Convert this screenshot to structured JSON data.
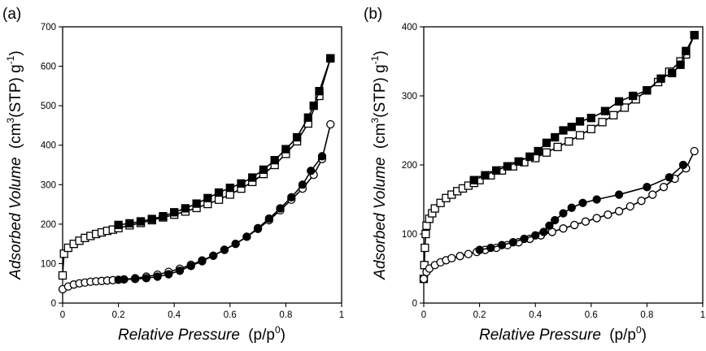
{
  "chart_data": [
    {
      "type": "scatter",
      "panel_label": "(a)",
      "xlabel": "Relative Pressure",
      "xlabel_suffix": "(p/p",
      "xlabel_sup": "0",
      "xlabel_close": ")",
      "ylabel": "Adsorbed Volume",
      "ylabel_suffix": "(cm",
      "ylabel_sup1": "3",
      "ylabel_mid": "(STP) g",
      "ylabel_sup2": "-1",
      "ylabel_close": ")",
      "xlim": [
        0,
        1
      ],
      "ylim": [
        0,
        700
      ],
      "xticks": [
        0,
        0.2,
        0.4,
        0.6,
        0.8,
        1
      ],
      "xtick_labels": [
        "0",
        "0.2",
        "0.4",
        "0.6",
        "0.8",
        "1"
      ],
      "yticks": [
        0,
        100,
        200,
        300,
        400,
        500,
        600,
        700
      ],
      "ytick_labels": [
        "0",
        "100",
        "200",
        "300",
        "400",
        "500",
        "600",
        "700"
      ],
      "series": [
        {
          "name": "square-adsorption",
          "marker": "square",
          "filled": false,
          "x": [
            0.0,
            0.005,
            0.02,
            0.04,
            0.06,
            0.08,
            0.1,
            0.12,
            0.14,
            0.16,
            0.18,
            0.2,
            0.24,
            0.28,
            0.32,
            0.36,
            0.4,
            0.44,
            0.48,
            0.52,
            0.56,
            0.6,
            0.64,
            0.68,
            0.72,
            0.76,
            0.8,
            0.84,
            0.88,
            0.92,
            0.96
          ],
          "y": [
            70,
            125,
            140,
            150,
            158,
            165,
            170,
            175,
            179,
            183,
            186,
            190,
            197,
            203,
            210,
            217,
            224,
            232,
            241,
            251,
            262,
            275,
            290,
            307,
            327,
            350,
            378,
            410,
            455,
            525,
            620
          ]
        },
        {
          "name": "square-desorption",
          "marker": "square",
          "filled": true,
          "x": [
            0.96,
            0.92,
            0.9,
            0.88,
            0.84,
            0.8,
            0.76,
            0.72,
            0.68,
            0.64,
            0.6,
            0.56,
            0.52,
            0.48,
            0.44,
            0.4,
            0.36,
            0.32,
            0.28,
            0.24,
            0.2
          ],
          "y": [
            620,
            537,
            500,
            470,
            420,
            390,
            362,
            338,
            318,
            303,
            292,
            280,
            266,
            252,
            240,
            230,
            220,
            213,
            207,
            202,
            198
          ]
        },
        {
          "name": "circle-adsorption",
          "marker": "circle",
          "filled": false,
          "x": [
            0.0,
            0.02,
            0.04,
            0.06,
            0.08,
            0.1,
            0.12,
            0.14,
            0.16,
            0.18,
            0.22,
            0.26,
            0.3,
            0.34,
            0.38,
            0.42,
            0.46,
            0.5,
            0.54,
            0.58,
            0.62,
            0.66,
            0.7,
            0.74,
            0.78,
            0.82,
            0.86,
            0.9,
            0.93,
            0.96
          ],
          "y": [
            35,
            42,
            47,
            50,
            52,
            54,
            55,
            56,
            57,
            58,
            60,
            63,
            67,
            72,
            79,
            87,
            97,
            108,
            120,
            135,
            150,
            168,
            188,
            210,
            235,
            262,
            290,
            325,
            365,
            453
          ]
        },
        {
          "name": "circle-desorption",
          "marker": "circle",
          "filled": true,
          "x": [
            0.93,
            0.89,
            0.86,
            0.82,
            0.78,
            0.74,
            0.7,
            0.66,
            0.62,
            0.58,
            0.54,
            0.5,
            0.46,
            0.42,
            0.38,
            0.34,
            0.3,
            0.26,
            0.22,
            0.2
          ],
          "y": [
            372,
            335,
            300,
            268,
            240,
            214,
            190,
            168,
            150,
            135,
            120,
            106,
            94,
            82,
            73,
            67,
            63,
            61,
            60,
            59
          ]
        }
      ]
    },
    {
      "type": "scatter",
      "panel_label": "(b)",
      "xlabel": "Relative Pressure",
      "xlabel_suffix": "(p/p",
      "xlabel_sup": "0",
      "xlabel_close": ")",
      "ylabel": "Adsorbed Volume",
      "ylabel_suffix": "(cm",
      "ylabel_sup1": "3",
      "ylabel_mid": "(STP) g",
      "ylabel_sup2": "-1",
      "ylabel_close": ")",
      "xlim": [
        0,
        1
      ],
      "ylim": [
        0,
        400
      ],
      "xticks": [
        0,
        0.2,
        0.4,
        0.6,
        0.8,
        1
      ],
      "xtick_labels": [
        "0",
        "0.2",
        "0.4",
        "0.6",
        "0.8",
        "1"
      ],
      "yticks": [
        0,
        100,
        200,
        300,
        400
      ],
      "ytick_labels": [
        "0",
        "100",
        "200",
        "300",
        "400"
      ],
      "series": [
        {
          "name": "square-adsorption",
          "marker": "square",
          "filled": false,
          "x": [
            0.0,
            0.002,
            0.004,
            0.007,
            0.01,
            0.02,
            0.03,
            0.04,
            0.06,
            0.08,
            0.1,
            0.12,
            0.14,
            0.16,
            0.18,
            0.2,
            0.24,
            0.28,
            0.32,
            0.36,
            0.4,
            0.44,
            0.48,
            0.52,
            0.56,
            0.6,
            0.64,
            0.68,
            0.72,
            0.76,
            0.8,
            0.84,
            0.88,
            0.92,
            0.94,
            0.97
          ],
          "y": [
            35,
            55,
            80,
            100,
            112,
            122,
            130,
            137,
            145,
            152,
            157,
            162,
            166,
            170,
            174,
            178,
            185,
            192,
            198,
            204,
            210,
            218,
            226,
            234,
            243,
            252,
            262,
            272,
            283,
            295,
            308,
            320,
            335,
            350,
            360,
            388
          ]
        },
        {
          "name": "square-desorption",
          "marker": "square",
          "filled": true,
          "x": [
            0.97,
            0.94,
            0.92,
            0.89,
            0.85,
            0.8,
            0.75,
            0.7,
            0.65,
            0.6,
            0.56,
            0.53,
            0.5,
            0.47,
            0.44,
            0.41,
            0.38,
            0.34,
            0.3,
            0.26,
            0.22,
            0.18
          ],
          "y": [
            388,
            365,
            345,
            333,
            325,
            308,
            300,
            292,
            278,
            268,
            263,
            255,
            250,
            240,
            232,
            220,
            212,
            205,
            198,
            192,
            185,
            178
          ]
        },
        {
          "name": "circle-adsorption",
          "marker": "circle",
          "filled": false,
          "x": [
            0.0,
            0.01,
            0.02,
            0.04,
            0.06,
            0.08,
            0.1,
            0.13,
            0.16,
            0.19,
            0.22,
            0.26,
            0.3,
            0.34,
            0.38,
            0.42,
            0.46,
            0.5,
            0.54,
            0.58,
            0.62,
            0.66,
            0.7,
            0.74,
            0.78,
            0.82,
            0.86,
            0.9,
            0.94,
            0.97
          ],
          "y": [
            35,
            45,
            50,
            55,
            59,
            62,
            65,
            68,
            71,
            74,
            77,
            80,
            84,
            88,
            93,
            98,
            103,
            108,
            113,
            118,
            123,
            128,
            133,
            140,
            148,
            157,
            168,
            180,
            195,
            220
          ]
        },
        {
          "name": "circle-desorption",
          "marker": "circle",
          "filled": true,
          "x": [
            0.93,
            0.88,
            0.8,
            0.7,
            0.62,
            0.57,
            0.53,
            0.5,
            0.47,
            0.45,
            0.43,
            0.4,
            0.36,
            0.32,
            0.28,
            0.24,
            0.2
          ],
          "y": [
            200,
            182,
            168,
            157,
            150,
            145,
            138,
            130,
            120,
            112,
            103,
            98,
            93,
            88,
            84,
            80,
            77
          ]
        }
      ]
    }
  ]
}
